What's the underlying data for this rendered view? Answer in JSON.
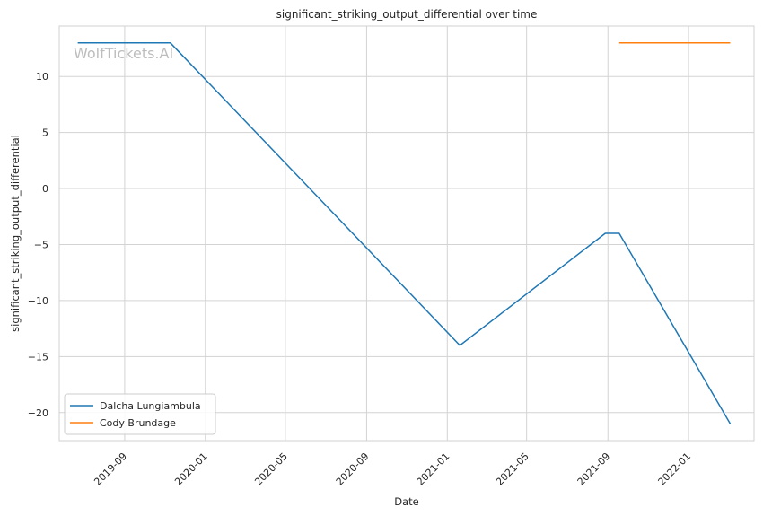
{
  "chart_data": {
    "type": "line",
    "title": "significant_striking_output_differential over time",
    "xlabel": "Date",
    "ylabel": "significant_striking_output_differential",
    "watermark": "WolfTickets.AI",
    "x_ticks": [
      "2019-09",
      "2020-01",
      "2020-05",
      "2020-09",
      "2021-01",
      "2021-05",
      "2021-09",
      "2022-01"
    ],
    "y_ticks": [
      10,
      5,
      0,
      -5,
      -10,
      -15,
      -20
    ],
    "xlim": [
      "2019-05-25",
      "2022-04-10"
    ],
    "ylim": [
      -22.5,
      14.5
    ],
    "grid": true,
    "legend_position": "lower-left",
    "series": [
      {
        "name": "Dalcha Lungiambula",
        "color": "#1f77b4",
        "points": [
          {
            "x": "2019-06-22",
            "y": 13
          },
          {
            "x": "2019-11-09",
            "y": 13
          },
          {
            "x": "2021-01-20",
            "y": -14
          },
          {
            "x": "2021-08-28",
            "y": -4
          },
          {
            "x": "2021-09-18",
            "y": -4
          },
          {
            "x": "2022-03-05",
            "y": -21
          }
        ]
      },
      {
        "name": "Cody Brundage",
        "color": "#ff7f0e",
        "points": [
          {
            "x": "2021-09-18",
            "y": 13
          },
          {
            "x": "2022-03-05",
            "y": 13
          }
        ]
      }
    ]
  }
}
